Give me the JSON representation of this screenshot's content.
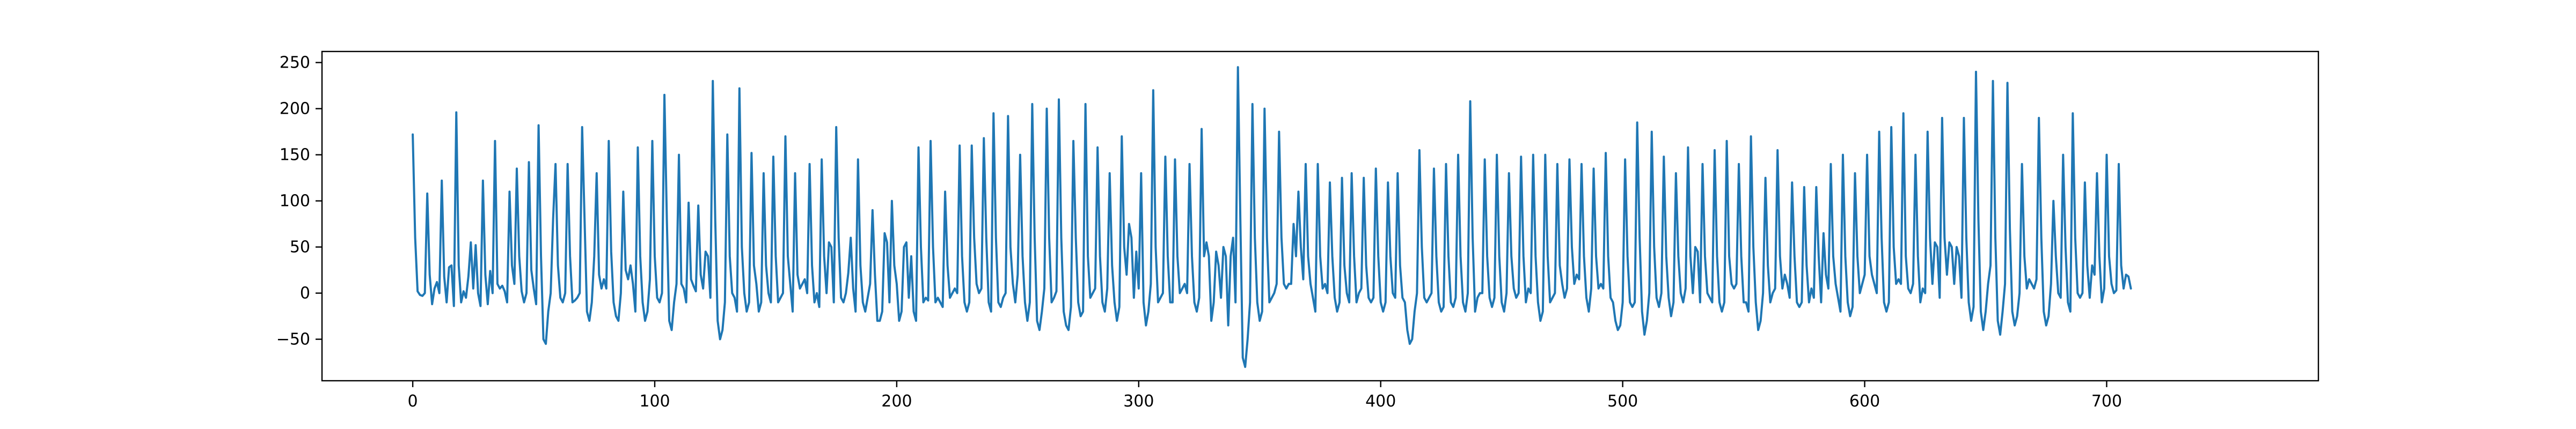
{
  "chart_data": {
    "type": "line",
    "title": "",
    "xlabel": "",
    "ylabel": "",
    "xlim": [
      -37.5,
      787.5
    ],
    "ylim": [
      -95,
      262
    ],
    "x_ticks": [
      0,
      100,
      200,
      300,
      400,
      500,
      600,
      700
    ],
    "x_tick_labels": [
      "0",
      "100",
      "200",
      "300",
      "400",
      "500",
      "600",
      "700"
    ],
    "y_ticks": [
      -50,
      0,
      50,
      100,
      150,
      200,
      250
    ],
    "y_tick_labels": [
      "−50",
      "0",
      "50",
      "100",
      "150",
      "200",
      "250"
    ],
    "grid": false,
    "legend": "none",
    "series": [
      {
        "color": "#1f77b4",
        "x_start": 0,
        "x_step": 1,
        "values": [
          172,
          60,
          2,
          -2,
          -3,
          0,
          108,
          20,
          -12,
          5,
          12,
          0,
          122,
          18,
          -10,
          28,
          30,
          -14,
          196,
          30,
          -10,
          2,
          -5,
          18,
          55,
          5,
          52,
          0,
          -14,
          122,
          20,
          -12,
          24,
          0,
          165,
          10,
          5,
          8,
          2,
          -10,
          110,
          30,
          10,
          135,
          40,
          2,
          -10,
          0,
          142,
          25,
          5,
          -12,
          182,
          40,
          -50,
          -55,
          -20,
          0,
          80,
          140,
          30,
          -5,
          -10,
          0,
          140,
          40,
          -10,
          -8,
          -5,
          0,
          180,
          80,
          -20,
          -30,
          -10,
          40,
          130,
          20,
          5,
          15,
          5,
          165,
          45,
          -10,
          -25,
          -30,
          0,
          110,
          25,
          15,
          30,
          10,
          -20,
          158,
          40,
          -10,
          -30,
          -20,
          15,
          165,
          40,
          -5,
          -10,
          0,
          215,
          80,
          -30,
          -40,
          -10,
          10,
          150,
          10,
          5,
          -10,
          98,
          15,
          8,
          2,
          95,
          20,
          5,
          45,
          40,
          -5,
          230,
          80,
          -30,
          -50,
          -40,
          -10,
          172,
          40,
          0,
          -5,
          -20,
          222,
          50,
          0,
          -20,
          -10,
          152,
          30,
          10,
          -20,
          -10,
          130,
          30,
          0,
          -10,
          148,
          40,
          -10,
          -5,
          0,
          170,
          40,
          10,
          -20,
          130,
          20,
          5,
          10,
          15,
          0,
          140,
          30,
          -10,
          0,
          -15,
          145,
          40,
          0,
          55,
          50,
          -10,
          180,
          60,
          -5,
          -10,
          0,
          22,
          60,
          5,
          -20,
          145,
          30,
          -10,
          -20,
          -5,
          10,
          90,
          20,
          -30,
          -30,
          -20,
          65,
          55,
          -10,
          100,
          30,
          10,
          -30,
          -20,
          50,
          55,
          -5,
          40,
          -20,
          -30,
          158,
          50,
          -10,
          -5,
          -8,
          165,
          50,
          -10,
          -5,
          -10,
          -15,
          110,
          30,
          -5,
          0,
          5,
          0,
          160,
          40,
          -10,
          -20,
          -10,
          160,
          60,
          10,
          0,
          5,
          168,
          60,
          -10,
          -20,
          195,
          60,
          -10,
          -15,
          -5,
          0,
          192,
          50,
          10,
          -10,
          20,
          150,
          40,
          -10,
          -30,
          -10,
          205,
          60,
          -30,
          -40,
          -20,
          5,
          200,
          60,
          -10,
          -5,
          2,
          210,
          60,
          -20,
          -35,
          -40,
          -15,
          165,
          60,
          -10,
          -25,
          -20,
          205,
          40,
          -5,
          0,
          5,
          158,
          40,
          -10,
          -20,
          5,
          130,
          30,
          -10,
          -30,
          -15,
          170,
          50,
          20,
          75,
          60,
          -5,
          45,
          5,
          130,
          -10,
          -35,
          -20,
          10,
          220,
          50,
          -10,
          -5,
          0,
          148,
          40,
          -10,
          -10,
          145,
          40,
          0,
          5,
          10,
          0,
          140,
          40,
          -10,
          -20,
          -5,
          178,
          40,
          55,
          40,
          -30,
          -10,
          45,
          30,
          -5,
          50,
          40,
          -35,
          40,
          60,
          -10,
          245,
          80,
          -70,
          -80,
          -50,
          -10,
          205,
          60,
          -10,
          -30,
          -20,
          200,
          60,
          -10,
          -5,
          0,
          10,
          175,
          60,
          10,
          5,
          10,
          10,
          75,
          40,
          110,
          50,
          15,
          140,
          40,
          10,
          -5,
          -20,
          140,
          40,
          5,
          10,
          0,
          120,
          40,
          -5,
          -20,
          -10,
          125,
          30,
          0,
          -10,
          130,
          40,
          -10,
          0,
          5,
          125,
          30,
          -5,
          -10,
          -5,
          135,
          40,
          -10,
          -20,
          -10,
          120,
          40,
          0,
          -5,
          130,
          30,
          -5,
          -10,
          -40,
          -55,
          -50,
          -20,
          0,
          155,
          50,
          -5,
          -10,
          -5,
          0,
          135,
          40,
          -10,
          -20,
          -15,
          140,
          40,
          -10,
          -15,
          -5,
          150,
          40,
          -10,
          -20,
          0,
          208,
          60,
          -20,
          -5,
          0,
          0,
          145,
          40,
          -5,
          -15,
          -5,
          150,
          40,
          -10,
          -20,
          0,
          130,
          40,
          5,
          -5,
          0,
          148,
          40,
          -10,
          5,
          0,
          150,
          40,
          -10,
          -30,
          -20,
          150,
          40,
          -10,
          -5,
          0,
          140,
          30,
          10,
          -5,
          5,
          145,
          50,
          10,
          20,
          15,
          140,
          40,
          -5,
          -20,
          5,
          135,
          40,
          5,
          10,
          5,
          152,
          40,
          -5,
          -10,
          -30,
          -40,
          -35,
          -10,
          145,
          40,
          -10,
          -15,
          -10,
          185,
          60,
          -20,
          -45,
          -30,
          0,
          175,
          50,
          -5,
          -15,
          0,
          148,
          40,
          -5,
          -25,
          -10,
          130,
          40,
          0,
          -10,
          5,
          158,
          40,
          0,
          50,
          45,
          -10,
          140,
          40,
          0,
          -5,
          -10,
          155,
          40,
          -10,
          -20,
          -10,
          165,
          40,
          10,
          5,
          10,
          140,
          40,
          -10,
          -10,
          -20,
          170,
          50,
          -10,
          -40,
          -30,
          0,
          125,
          30,
          -10,
          0,
          5,
          155,
          40,
          5,
          20,
          10,
          -5,
          120,
          40,
          -10,
          -15,
          -10,
          115,
          30,
          -10,
          5,
          -5,
          115,
          40,
          -10,
          65,
          20,
          5,
          140,
          40,
          10,
          -5,
          -20,
          150,
          40,
          -10,
          -25,
          -15,
          130,
          40,
          0,
          10,
          20,
          150,
          40,
          20,
          10,
          0,
          175,
          60,
          -10,
          -20,
          -10,
          180,
          50,
          10,
          15,
          10,
          195,
          40,
          5,
          0,
          10,
          150,
          40,
          -10,
          5,
          0,
          175,
          60,
          10,
          55,
          50,
          -5,
          190,
          60,
          20,
          55,
          50,
          10,
          50,
          40,
          -5,
          190,
          60,
          -10,
          -30,
          -15,
          240,
          80,
          -20,
          -40,
          -20,
          10,
          30,
          230,
          60,
          -30,
          -45,
          -20,
          10,
          228,
          70,
          -20,
          -35,
          -25,
          0,
          140,
          40,
          5,
          15,
          10,
          5,
          15,
          190,
          60,
          -20,
          -35,
          -25,
          10,
          100,
          40,
          0,
          -5,
          150,
          50,
          -10,
          -20,
          195,
          60,
          0,
          -5,
          0,
          120,
          30,
          -5,
          30,
          20,
          130,
          40,
          -10,
          5,
          150,
          40,
          10,
          0,
          3,
          140,
          30,
          5,
          20,
          18,
          5
        ]
      }
    ]
  }
}
